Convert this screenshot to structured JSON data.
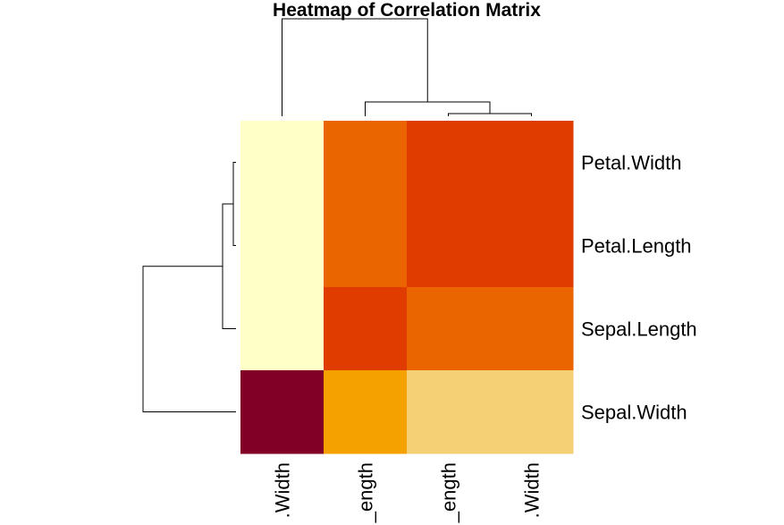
{
  "chart_data": {
    "type": "heatmap",
    "title": "Heatmap of Correlation Matrix",
    "rows": [
      "Petal.Width",
      "Petal.Length",
      "Sepal.Length",
      "Sepal.Width"
    ],
    "cols": [
      "Sepal.Width",
      "Sepal.Length",
      "Petal.Length",
      "Petal.Width"
    ],
    "col_tick_labels": [
      ".Width",
      "_ength",
      "_ength",
      ".Width"
    ],
    "values": [
      [
        -0.37,
        0.82,
        0.96,
        1.0
      ],
      [
        -0.43,
        0.87,
        1.0,
        0.96
      ],
      [
        -0.12,
        1.0,
        0.87,
        0.82
      ],
      [
        1.0,
        -0.12,
        -0.43,
        -0.37
      ]
    ],
    "cell_colors": [
      [
        "#ffffc8",
        "#ea6400",
        "#e03c00",
        "#e03c00"
      ],
      [
        "#ffffc8",
        "#ea6400",
        "#e03c00",
        "#e03c00"
      ],
      [
        "#ffffc8",
        "#e03c00",
        "#ea6400",
        "#ea6400"
      ],
      [
        "#800026",
        "#f5a200",
        "#f5d074",
        "#f5d074"
      ]
    ],
    "row_dendrogram": true,
    "col_dendrogram": true
  }
}
